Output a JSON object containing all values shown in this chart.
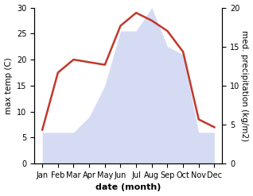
{
  "months": [
    "Jan",
    "Feb",
    "Mar",
    "Apr",
    "May",
    "Jun",
    "Jul",
    "Aug",
    "Sep",
    "Oct",
    "Nov",
    "Dec"
  ],
  "month_x": [
    1,
    2,
    3,
    4,
    5,
    6,
    7,
    8,
    9,
    10,
    11,
    12
  ],
  "temperature": [
    6.5,
    17.5,
    20.0,
    19.5,
    19.0,
    26.5,
    29.0,
    27.5,
    25.5,
    21.5,
    8.5,
    7.0
  ],
  "precipitation_right": [
    4,
    4,
    4,
    6,
    10,
    17,
    17,
    20,
    15,
    14,
    4,
    4
  ],
  "temp_color": "#c0392b",
  "precip_fill_color": "#c5cdf0",
  "precip_fill_alpha": 0.7,
  "left_ylim": [
    0,
    30
  ],
  "right_ylim": [
    0,
    20
  ],
  "left_yticks": [
    0,
    5,
    10,
    15,
    20,
    25,
    30
  ],
  "right_yticks": [
    0,
    5,
    10,
    15,
    20
  ],
  "ylabel_left": "max temp (C)",
  "ylabel_right": "med. precipitation (kg/m2)",
  "xlabel": "date (month)",
  "xlabel_fontweight": "bold",
  "temp_linewidth": 1.8,
  "tick_fontsize": 7,
  "label_fontsize": 7.5,
  "xlabel_fontsize": 8
}
